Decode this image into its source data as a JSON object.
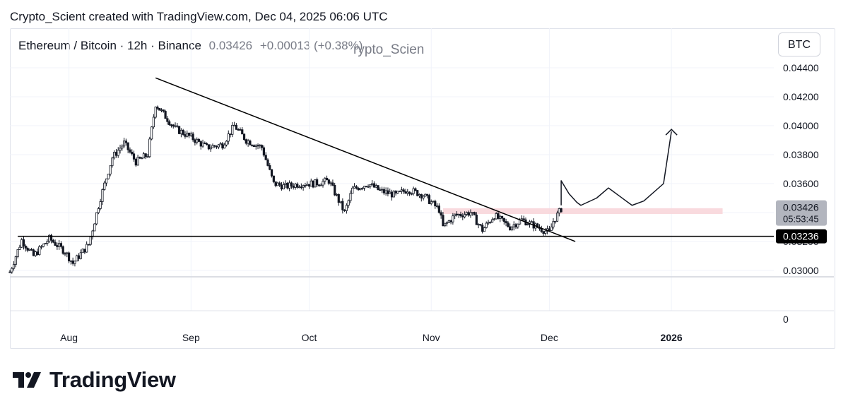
{
  "header": {
    "created_by": "Crypto_Scient created with TradingView.com, Dec 04, 2025 06:06 UTC"
  },
  "legend": {
    "symbol": "Ethereum / Bitcoin · 12h · Binance",
    "price": "0.03426",
    "change": "+0.00013 (+0.38%)"
  },
  "author_overlay": "rypto_Scien",
  "currency_button": "BTC",
  "price_labels": {
    "current": "0.03426",
    "countdown": "05:53:45",
    "support": "0.03236"
  },
  "volume_axis_label": "0",
  "brand": {
    "name": "TradingView"
  },
  "colors": {
    "candle": "#131722",
    "resistance_zone": "#f8d4d8",
    "current_tag": "#b2b5be",
    "support_tag": "#000000"
  },
  "chart_data": {
    "type": "candlestick",
    "title": "",
    "y_scale": "linear",
    "ylim": [
      0.0297,
      0.0446
    ],
    "yticks": [
      "0.04400",
      "0.04200",
      "0.04000",
      "0.03800",
      "0.03600",
      "0.03400",
      "0.03200",
      "0.03000"
    ],
    "x_range": [
      "2025-07-17",
      "2026-01-27"
    ],
    "xticks": [
      {
        "label": "Aug",
        "date": "2025-08-01"
      },
      {
        "label": "Sep",
        "date": "2025-09-01"
      },
      {
        "label": "Oct",
        "date": "2025-10-01"
      },
      {
        "label": "Nov",
        "date": "2025-11-01"
      },
      {
        "label": "Dec",
        "date": "2025-12-01"
      },
      {
        "label": "2026",
        "date": "2026-01-01"
      }
    ],
    "close_path": [
      [
        "2025-07-17",
        0.0299
      ],
      [
        "2025-07-20",
        0.0321
      ],
      [
        "2025-07-23",
        0.031
      ],
      [
        "2025-07-27",
        0.0322
      ],
      [
        "2025-07-31",
        0.0313
      ],
      [
        "2025-08-02",
        0.0305
      ],
      [
        "2025-08-06",
        0.0318
      ],
      [
        "2025-08-09",
        0.035
      ],
      [
        "2025-08-12",
        0.0378
      ],
      [
        "2025-08-15",
        0.0388
      ],
      [
        "2025-08-18",
        0.0375
      ],
      [
        "2025-08-21",
        0.038
      ],
      [
        "2025-08-23",
        0.0415
      ],
      [
        "2025-08-25",
        0.0408
      ],
      [
        "2025-08-28",
        0.0398
      ],
      [
        "2025-09-01",
        0.0392
      ],
      [
        "2025-09-05",
        0.0385
      ],
      [
        "2025-09-09",
        0.0387
      ],
      [
        "2025-09-12",
        0.04
      ],
      [
        "2025-09-15",
        0.039
      ],
      [
        "2025-09-19",
        0.0385
      ],
      [
        "2025-09-22",
        0.036
      ],
      [
        "2025-09-25",
        0.0358
      ],
      [
        "2025-09-29",
        0.036
      ],
      [
        "2025-10-02",
        0.036
      ],
      [
        "2025-10-06",
        0.0362
      ],
      [
        "2025-10-10",
        0.034
      ],
      [
        "2025-10-12",
        0.0356
      ],
      [
        "2025-10-16",
        0.036
      ],
      [
        "2025-10-19",
        0.0355
      ],
      [
        "2025-10-23",
        0.0352
      ],
      [
        "2025-10-26",
        0.0356
      ],
      [
        "2025-10-30",
        0.0352
      ],
      [
        "2025-11-03",
        0.0342
      ],
      [
        "2025-11-04",
        0.033
      ],
      [
        "2025-11-07",
        0.0338
      ],
      [
        "2025-11-11",
        0.034
      ],
      [
        "2025-11-14",
        0.0328
      ],
      [
        "2025-11-17",
        0.0338
      ],
      [
        "2025-11-21",
        0.033
      ],
      [
        "2025-11-24",
        0.0335
      ],
      [
        "2025-11-28",
        0.033
      ],
      [
        "2025-12-01",
        0.0326
      ],
      [
        "2025-12-02",
        0.0334
      ],
      [
        "2025-12-04",
        0.03426
      ]
    ],
    "drawings": {
      "downtrend_line": [
        [
          "2025-08-23",
          0.0433
        ],
        [
          "2025-12-04",
          0.0322
        ]
      ],
      "support_line": {
        "from": "2025-07-19",
        "to": "2026-01-27",
        "price": 0.03236
      },
      "resistance_zone": {
        "from": "2025-11-04",
        "to": "2026-01-14",
        "price_low": 0.0339,
        "price_high": 0.0343
      },
      "projection_path": [
        [
          "2025-12-04",
          0.0345
        ],
        [
          "2025-12-04",
          0.0362
        ],
        [
          "2025-12-06",
          0.0353
        ],
        [
          "2025-12-08",
          0.0347
        ],
        [
          "2025-12-09",
          0.0345
        ],
        [
          "2025-12-13",
          0.035
        ],
        [
          "2025-12-16",
          0.0357
        ],
        [
          "2025-12-19",
          0.0351
        ],
        [
          "2025-12-22",
          0.0345
        ],
        [
          "2025-12-25",
          0.0348
        ],
        [
          "2025-12-30",
          0.036
        ],
        [
          "2026-01-01",
          0.0396
        ]
      ]
    },
    "annotations": [
      "0.03426",
      "05:53:45",
      "0.03236"
    ]
  }
}
